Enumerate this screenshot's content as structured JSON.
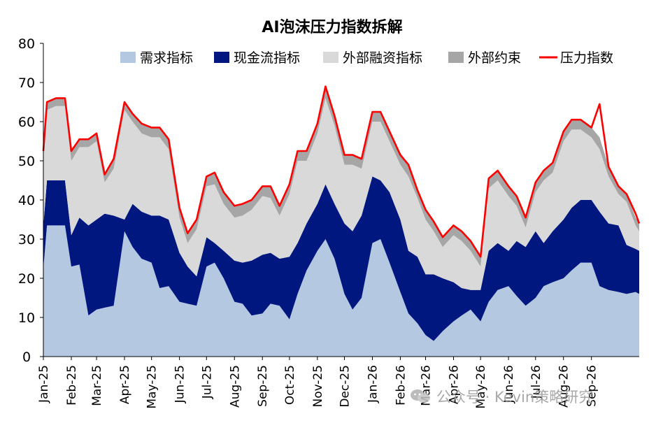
{
  "chart_data": {
    "type": "area",
    "title": "AI泡沫压力指数拆解",
    "xlabel": "",
    "ylabel": "",
    "ylim": [
      0,
      80
    ],
    "yticks": [
      0,
      10,
      20,
      30,
      40,
      50,
      60,
      70,
      80
    ],
    "grid": false,
    "legend_position": "top",
    "xlim": [
      "2025-01-01",
      "2026-10-24"
    ],
    "x_tick_labels": [
      "Jan-25",
      "Feb-25",
      "Mar-25",
      "Apr-25",
      "May-25",
      "Jun-25",
      "Jul-25",
      "Aug-25",
      "Sep-25",
      "Oct-25",
      "Nov-25",
      "Dec-25",
      "Jan-26",
      "Feb-26",
      "Mar-26",
      "Apr-26",
      "May-26",
      "Jun-26",
      "Jul-26",
      "Aug-26",
      "Sep-26"
    ],
    "x_tick_dates": [
      "2025-01-01",
      "2025-02-01",
      "2025-03-01",
      "2025-04-01",
      "2025-05-01",
      "2025-06-01",
      "2025-07-01",
      "2025-08-01",
      "2025-09-01",
      "2025-10-01",
      "2025-11-01",
      "2025-12-01",
      "2026-01-01",
      "2026-02-01",
      "2026-03-01",
      "2026-04-01",
      "2026-05-01",
      "2026-06-01",
      "2026-07-01",
      "2026-08-01",
      "2026-09-01"
    ],
    "dates": [
      "2025-01-01",
      "2025-01-05",
      "2025-01-15",
      "2025-01-25",
      "2025-02-01",
      "2025-02-10",
      "2025-02-20",
      "2025-03-01",
      "2025-03-10",
      "2025-03-20",
      "2025-04-01",
      "2025-04-10",
      "2025-04-20",
      "2025-05-01",
      "2025-05-10",
      "2025-05-20",
      "2025-06-01",
      "2025-06-10",
      "2025-06-20",
      "2025-07-01",
      "2025-07-10",
      "2025-07-20",
      "2025-08-01",
      "2025-08-10",
      "2025-08-20",
      "2025-09-01",
      "2025-09-10",
      "2025-09-20",
      "2025-10-01",
      "2025-10-10",
      "2025-10-20",
      "2025-11-01",
      "2025-11-10",
      "2025-11-20",
      "2025-12-01",
      "2025-12-10",
      "2025-12-20",
      "2026-01-01",
      "2026-01-10",
      "2026-01-20",
      "2026-02-01",
      "2026-02-10",
      "2026-02-20",
      "2026-03-01",
      "2026-03-10",
      "2026-03-20",
      "2026-04-01",
      "2026-04-10",
      "2026-04-20",
      "2026-05-01",
      "2026-05-10",
      "2026-05-20",
      "2026-06-01",
      "2026-06-10",
      "2026-06-20",
      "2026-07-01",
      "2026-07-10",
      "2026-07-20",
      "2026-08-01",
      "2026-08-10",
      "2026-08-20",
      "2026-09-01",
      "2026-09-10",
      "2026-09-20",
      "2026-10-01",
      "2026-10-10",
      "2026-10-20",
      "2026-10-24"
    ],
    "series": [
      {
        "name": "需求指标",
        "color": "#b4c8e1",
        "kind": "area",
        "values": [
          22.5,
          33.5,
          33.5,
          33.5,
          23,
          23.5,
          10.5,
          12,
          12.5,
          13,
          32,
          28,
          25,
          24,
          17.5,
          18,
          14,
          13.5,
          13,
          23,
          24,
          20,
          14,
          13.5,
          10.5,
          11,
          13.5,
          13,
          9.5,
          16,
          22,
          27,
          30,
          25,
          16,
          12,
          15,
          29,
          30,
          24,
          16.5,
          11,
          8.5,
          5.5,
          4,
          6.5,
          9,
          10.5,
          12,
          9,
          14,
          17,
          18,
          15.5,
          13,
          15,
          18,
          19,
          20,
          22,
          24,
          24,
          18,
          17,
          16.5,
          16,
          16.5,
          16
        ]
      },
      {
        "name": "现金流指标",
        "color": "#001780",
        "kind": "area",
        "values": [
          11,
          11.5,
          11.5,
          11.5,
          8,
          12,
          23,
          23,
          24,
          23,
          3,
          11,
          12,
          12,
          18.5,
          17,
          12.5,
          9.5,
          7.5,
          7.5,
          5,
          7,
          10.5,
          10.5,
          14,
          15,
          13,
          12,
          16,
          13,
          12,
          12,
          14,
          14,
          18,
          20,
          21,
          17,
          15,
          18,
          18.5,
          16,
          17,
          15.5,
          17,
          13.5,
          10,
          7,
          5,
          8,
          13,
          12,
          9,
          14,
          15,
          17,
          11,
          13,
          15,
          16,
          16,
          16,
          19,
          17,
          17,
          12.5,
          11,
          11
        ]
      },
      {
        "name": "外部融资指标",
        "color": "#d9d9d9",
        "kind": "area",
        "values": [
          17,
          18,
          19,
          19,
          19,
          18,
          20,
          20,
          8,
          12,
          28,
          21,
          20,
          20,
          20,
          18,
          9,
          6,
          12,
          13,
          15,
          12,
          11,
          12,
          13,
          15,
          14,
          11,
          16,
          21,
          16,
          18,
          22,
          20,
          15,
          17,
          12,
          14,
          15,
          13,
          14,
          19,
          15,
          14,
          11,
          8,
          12,
          12,
          10,
          6,
          16,
          16,
          14,
          9,
          5,
          10,
          16,
          15,
          20,
          20,
          18,
          16,
          16,
          12,
          8,
          11,
          6,
          5
        ]
      },
      {
        "name": "外部约束",
        "color": "#a6a6a6",
        "kind": "area",
        "values": [
          2,
          2,
          2,
          2,
          2.5,
          2,
          2,
          2,
          2,
          2.5,
          2,
          2,
          2.5,
          2.5,
          2.5,
          2.5,
          2.5,
          2.5,
          2.5,
          2.5,
          3,
          3,
          3,
          3,
          2.5,
          2.5,
          3,
          2.5,
          2.5,
          2.5,
          2.5,
          2.5,
          3,
          2.5,
          2.5,
          2.5,
          2.5,
          2.5,
          2.5,
          2.5,
          3,
          3,
          2.5,
          2.5,
          2.5,
          2.5,
          2.5,
          2.5,
          2.5,
          2.5,
          2.5,
          2.5,
          2.5,
          2.5,
          2.5,
          2.5,
          2.5,
          2.5,
          2.5,
          2.5,
          2.5,
          2.5,
          3,
          2.5,
          2,
          2,
          2,
          2
        ]
      },
      {
        "name": "压力指数",
        "color": "#ff0000",
        "kind": "line",
        "values": [
          52.5,
          65,
          66,
          66,
          52.5,
          55.5,
          55.5,
          57,
          46.5,
          50.5,
          65,
          62,
          59.5,
          58.5,
          58.5,
          55.5,
          38,
          31.5,
          35,
          46,
          47,
          42,
          38.5,
          39,
          40,
          43.5,
          43.5,
          38.5,
          44,
          52.5,
          52.5,
          59.5,
          69,
          61.5,
          51.5,
          51.5,
          50.5,
          62.5,
          62.5,
          57.5,
          51.5,
          49,
          42.5,
          37.5,
          34.5,
          30.5,
          33.5,
          32,
          29.5,
          25.5,
          45.5,
          47.5,
          43.5,
          41,
          35.5,
          44.5,
          47.5,
          49.5,
          57.5,
          60.5,
          60.5,
          58.5,
          64.5,
          48.5,
          43.5,
          41.5,
          36.5,
          34
        ]
      }
    ]
  },
  "watermark": {
    "text": "公众号 · Kevin策略研究",
    "icon": "wechat-icon"
  }
}
